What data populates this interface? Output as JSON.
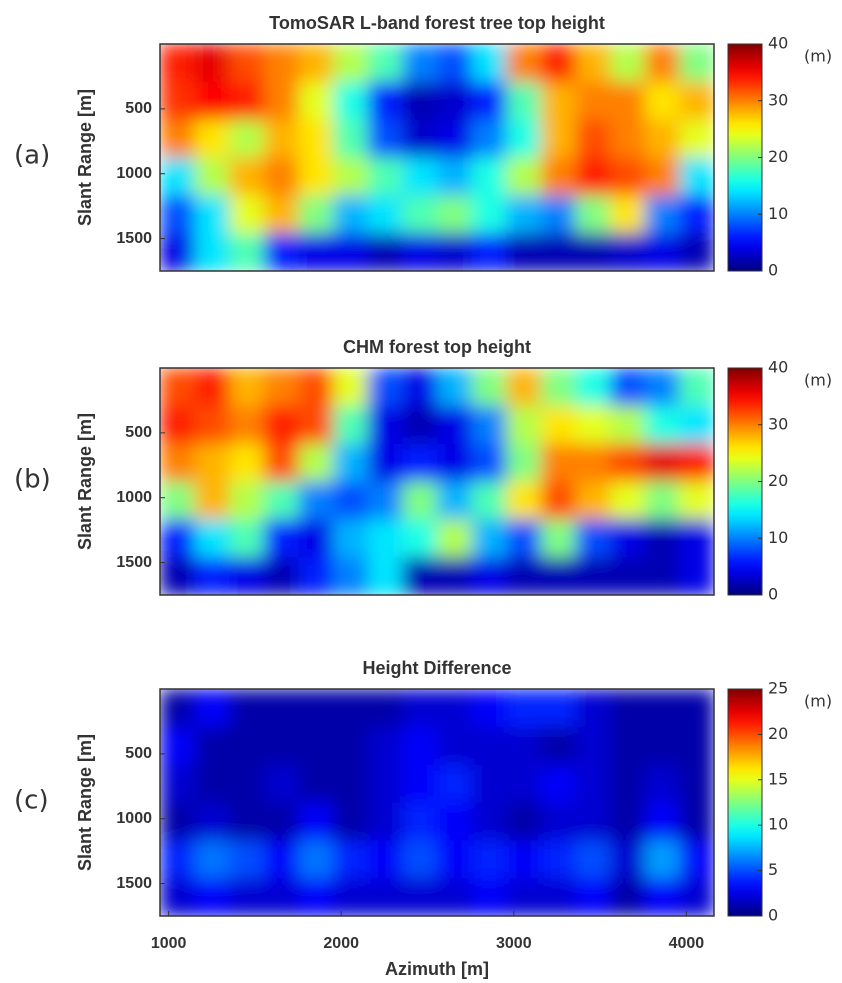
{
  "chart_data": [
    {
      "type": "heatmap",
      "title": "TomoSAR L-band forest tree top height",
      "panel_label": "(a)",
      "ylabel": "Slant Range [m]",
      "colorbar_label": "(m)",
      "colormap": "jet",
      "xlim": [
        950,
        4160
      ],
      "ylim": [
        0,
        1750
      ],
      "yticks": [
        500,
        1000,
        1500
      ],
      "zlim": [
        0,
        40
      ],
      "zticks": [
        0,
        10,
        20,
        30,
        40
      ],
      "values": [
        [
          34,
          36,
          32,
          30,
          28,
          22,
          18,
          10,
          8,
          14,
          30,
          34,
          28,
          22,
          30,
          20
        ],
        [
          33,
          35,
          34,
          30,
          24,
          16,
          6,
          2,
          3,
          6,
          18,
          28,
          30,
          30,
          26,
          28
        ],
        [
          30,
          26,
          22,
          28,
          26,
          18,
          8,
          3,
          4,
          10,
          16,
          28,
          32,
          30,
          28,
          24
        ],
        [
          14,
          22,
          28,
          30,
          26,
          22,
          18,
          14,
          12,
          16,
          22,
          30,
          34,
          32,
          30,
          14
        ],
        [
          8,
          14,
          24,
          28,
          20,
          12,
          14,
          18,
          20,
          16,
          12,
          10,
          20,
          26,
          10,
          6
        ],
        [
          4,
          14,
          18,
          6,
          4,
          4,
          2,
          4,
          3,
          6,
          2,
          2,
          2,
          3,
          4,
          2
        ]
      ]
    },
    {
      "type": "heatmap",
      "title": "CHM forest top height",
      "panel_label": "(b)",
      "ylabel": "Slant Range [m]",
      "colorbar_label": "(m)",
      "colormap": "jet",
      "xlim": [
        950,
        4160
      ],
      "ylim": [
        0,
        1750
      ],
      "yticks": [
        500,
        1000,
        1500
      ],
      "zlim": [
        0,
        40
      ],
      "zticks": [
        0,
        10,
        20,
        30,
        40
      ],
      "values": [
        [
          32,
          34,
          28,
          30,
          32,
          24,
          8,
          4,
          12,
          20,
          28,
          20,
          16,
          8,
          10,
          18
        ],
        [
          34,
          32,
          30,
          34,
          32,
          18,
          4,
          2,
          4,
          10,
          22,
          26,
          24,
          22,
          16,
          14
        ],
        [
          30,
          28,
          26,
          32,
          22,
          12,
          4,
          6,
          4,
          8,
          20,
          30,
          30,
          32,
          36,
          34
        ],
        [
          20,
          28,
          22,
          18,
          10,
          8,
          10,
          20,
          12,
          18,
          26,
          32,
          28,
          24,
          20,
          24
        ],
        [
          6,
          14,
          18,
          6,
          4,
          12,
          14,
          16,
          22,
          12,
          8,
          20,
          8,
          4,
          2,
          4
        ],
        [
          2,
          6,
          4,
          2,
          6,
          10,
          14,
          2,
          2,
          4,
          2,
          2,
          2,
          2,
          2,
          4
        ]
      ]
    },
    {
      "type": "heatmap",
      "title": "Height Difference",
      "panel_label": "(c)",
      "ylabel": "Slant Range [m]",
      "colorbar_label": "(m)",
      "colormap": "jet",
      "xlim": [
        950,
        4160
      ],
      "xticks": [
        1000,
        2000,
        3000,
        4000
      ],
      "xlabel": "Azimuth [m]",
      "ylim": [
        0,
        1750
      ],
      "yticks": [
        500,
        1000,
        1500
      ],
      "zlim": [
        0,
        25
      ],
      "zticks": [
        0,
        5,
        10,
        15,
        20,
        25
      ],
      "values": [
        [
          1,
          3,
          1,
          1,
          1,
          1,
          1,
          2,
          2,
          3,
          4,
          4,
          2,
          1,
          1,
          1
        ],
        [
          3,
          1,
          1,
          1,
          1,
          1,
          2,
          3,
          2,
          2,
          2,
          1,
          2,
          1,
          1,
          1
        ],
        [
          2,
          1,
          1,
          2,
          1,
          1,
          2,
          3,
          4,
          2,
          2,
          3,
          2,
          1,
          2,
          1
        ],
        [
          1,
          2,
          1,
          1,
          3,
          1,
          2,
          4,
          3,
          2,
          1,
          2,
          2,
          1,
          3,
          1
        ],
        [
          4,
          6,
          5,
          3,
          6,
          4,
          3,
          5,
          3,
          4,
          3,
          4,
          5,
          2,
          7,
          3
        ],
        [
          2,
          3,
          2,
          2,
          3,
          2,
          2,
          2,
          2,
          3,
          2,
          2,
          3,
          1,
          3,
          2
        ]
      ]
    }
  ]
}
